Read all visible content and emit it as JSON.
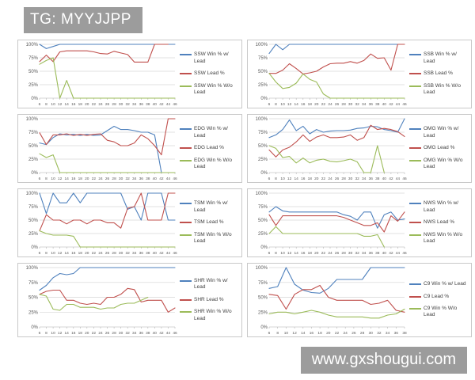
{
  "watermarks": {
    "top_left": "TG: MYYJJPP",
    "bottom_right": "www.gxshougui.com",
    "bg_color": "#9c9c9c",
    "text_color": "#ffffff"
  },
  "palette": {
    "blue": "#4F81BD",
    "red": "#C0504D",
    "green": "#9BBB59",
    "grid": "#d6d6d6",
    "axis_text": "#595959",
    "panel_border": "#c9c9c9"
  },
  "chart_data": [
    {
      "id": "ssw",
      "type": "line",
      "title": "",
      "xlabel": "",
      "ylabel": "",
      "grid": true,
      "legend_position": "right",
      "ylim": [
        0,
        100
      ],
      "yticks": [
        "0%",
        "25%",
        "50%",
        "75%",
        "100%"
      ],
      "x": [
        6,
        8,
        10,
        12,
        14,
        16,
        18,
        20,
        22,
        24,
        26,
        28,
        30,
        32,
        34,
        36,
        38,
        40,
        42,
        44,
        46
      ],
      "series": [
        {
          "name": "SSW Win % w/ Lead",
          "color": "#4F81BD",
          "values": [
            100,
            92,
            96,
            100,
            100,
            100,
            100,
            100,
            100,
            100,
            100,
            100,
            100,
            100,
            100,
            100,
            100,
            100,
            100,
            100,
            100
          ]
        },
        {
          "name": "SSW Lead %",
          "color": "#C0504D",
          "values": [
            68,
            80,
            68,
            86,
            88,
            88,
            88,
            88,
            86,
            83,
            82,
            87,
            84,
            81,
            67,
            67,
            67,
            100,
            100,
            100,
            null
          ]
        },
        {
          "name": "SSW Win % W/o Lead",
          "color": "#9BBB59",
          "values": [
            63,
            70,
            75,
            0,
            33,
            0,
            0,
            0,
            0,
            0,
            0,
            0,
            0,
            0,
            0,
            0,
            0,
            0,
            0,
            0,
            0
          ]
        }
      ]
    },
    {
      "id": "ssb",
      "type": "line",
      "title": "",
      "xlabel": "",
      "ylabel": "",
      "grid": true,
      "legend_position": "right",
      "ylim": [
        0,
        100
      ],
      "yticks": [
        "0%",
        "25%",
        "50%",
        "75%",
        "100%"
      ],
      "x": [
        6,
        8,
        10,
        12,
        14,
        16,
        18,
        20,
        22,
        24,
        26,
        28,
        30,
        32,
        34,
        36,
        38,
        40,
        42,
        44,
        46
      ],
      "series": [
        {
          "name": "SSB Win % w/ Lead",
          "color": "#4F81BD",
          "values": [
            83,
            100,
            90,
            100,
            100,
            100,
            100,
            100,
            100,
            100,
            100,
            100,
            100,
            100,
            100,
            100,
            100,
            100,
            100,
            100,
            100
          ]
        },
        {
          "name": "SSB Lead %",
          "color": "#C0504D",
          "values": [
            46,
            46,
            52,
            64,
            55,
            45,
            47,
            50,
            58,
            64,
            65,
            65,
            68,
            65,
            70,
            82,
            74,
            75,
            52,
            100,
            100
          ]
        },
        {
          "name": "SSB Win % W/o Lead",
          "color": "#9BBB59",
          "values": [
            46,
            30,
            18,
            20,
            28,
            45,
            35,
            30,
            8,
            0,
            0,
            0,
            0,
            0,
            0,
            0,
            0,
            0,
            0,
            0,
            0
          ]
        }
      ]
    },
    {
      "id": "edg",
      "type": "line",
      "title": "",
      "xlabel": "",
      "ylabel": "",
      "grid": true,
      "legend_position": "right",
      "ylim": [
        0,
        100
      ],
      "yticks": [
        "0%",
        "25%",
        "50%",
        "75%",
        "100%"
      ],
      "x": [
        6,
        8,
        10,
        12,
        14,
        16,
        18,
        20,
        22,
        24,
        26,
        28,
        30,
        32,
        34,
        36,
        38,
        40,
        42,
        44,
        46
      ],
      "series": [
        {
          "name": "EDG Win % w/ Lead",
          "color": "#4F81BD",
          "values": [
            55,
            52,
            65,
            72,
            70,
            71,
            69,
            71,
            69,
            70,
            78,
            86,
            80,
            80,
            78,
            75,
            75,
            70,
            0,
            0,
            0
          ]
        },
        {
          "name": "EDG Lead %",
          "color": "#C0504D",
          "values": [
            74,
            52,
            70,
            70,
            72,
            69,
            71,
            69,
            71,
            72,
            60,
            57,
            50,
            50,
            55,
            70,
            63,
            50,
            33,
            100,
            100
          ]
        },
        {
          "name": "EDG Win % W/o Lead",
          "color": "#9BBB59",
          "values": [
            35,
            28,
            33,
            0,
            0,
            0,
            0,
            0,
            0,
            0,
            0,
            0,
            0,
            0,
            0,
            0,
            0,
            0,
            0,
            0,
            0
          ]
        }
      ]
    },
    {
      "id": "omg",
      "type": "line",
      "title": "",
      "xlabel": "",
      "ylabel": "",
      "grid": true,
      "legend_position": "right",
      "ylim": [
        0,
        100
      ],
      "yticks": [
        "0%",
        "25%",
        "50%",
        "75%",
        "100%"
      ],
      "x": [
        6,
        8,
        10,
        12,
        14,
        16,
        18,
        20,
        22,
        24,
        26,
        28,
        30,
        32,
        34,
        36,
        38,
        40,
        42,
        44,
        46
      ],
      "series": [
        {
          "name": "OMG Win % w/ Lead",
          "color": "#4F81BD",
          "values": [
            65,
            70,
            80,
            98,
            78,
            86,
            72,
            80,
            75,
            77,
            78,
            78,
            79,
            82,
            83,
            86,
            85,
            80,
            78,
            75,
            100
          ]
        },
        {
          "name": "OMG Lead %",
          "color": "#C0504D",
          "values": [
            42,
            29,
            42,
            47,
            57,
            70,
            58,
            66,
            70,
            65,
            65,
            66,
            70,
            60,
            65,
            88,
            80,
            82,
            80,
            76,
            67
          ]
        },
        {
          "name": "OMG Win % W/o Lead",
          "color": "#9BBB59",
          "values": [
            50,
            45,
            28,
            30,
            18,
            27,
            18,
            23,
            25,
            21,
            20,
            22,
            25,
            20,
            0,
            0,
            50,
            0,
            null,
            null,
            null
          ]
        }
      ]
    },
    {
      "id": "tsm",
      "type": "line",
      "title": "",
      "xlabel": "",
      "ylabel": "",
      "grid": true,
      "legend_position": "right",
      "ylim": [
        0,
        100
      ],
      "yticks": [
        "0%",
        "25%",
        "50%",
        "75%",
        "100%"
      ],
      "x": [
        6,
        8,
        10,
        12,
        14,
        16,
        18,
        20,
        22,
        24,
        26,
        28,
        30,
        32,
        34,
        36,
        38,
        40,
        42,
        44,
        46
      ],
      "series": [
        {
          "name": "TSM Win % w/ Lead",
          "color": "#4F81BD",
          "values": [
            100,
            62,
            100,
            82,
            82,
            100,
            82,
            100,
            100,
            100,
            100,
            100,
            100,
            70,
            75,
            50,
            100,
            100,
            100,
            50,
            50
          ]
        },
        {
          "name": "TSM Lead %",
          "color": "#C0504D",
          "values": [
            30,
            60,
            50,
            50,
            43,
            50,
            50,
            43,
            50,
            50,
            45,
            45,
            35,
            72,
            75,
            100,
            50,
            50,
            50,
            100,
            100
          ]
        },
        {
          "name": "TSM Win % W/o Lead",
          "color": "#9BBB59",
          "values": [
            30,
            25,
            22,
            22,
            22,
            20,
            0,
            0,
            0,
            0,
            0,
            0,
            0,
            0,
            0,
            0,
            0,
            0,
            0,
            0,
            0
          ]
        }
      ]
    },
    {
      "id": "nws",
      "type": "line",
      "title": "",
      "xlabel": "",
      "ylabel": "",
      "grid": true,
      "legend_position": "right",
      "ylim": [
        0,
        100
      ],
      "yticks": [
        "0%",
        "25%",
        "50%",
        "75%",
        "100%"
      ],
      "x": [
        6,
        8,
        10,
        12,
        14,
        16,
        18,
        20,
        22,
        24,
        26,
        28,
        30,
        32,
        34,
        36,
        38,
        40,
        42,
        44,
        46
      ],
      "series": [
        {
          "name": "NWS Win % w/ Lead",
          "color": "#4F81BD",
          "values": [
            65,
            75,
            67,
            65,
            65,
            65,
            65,
            65,
            65,
            65,
            65,
            60,
            57,
            50,
            65,
            65,
            35,
            60,
            65,
            50,
            52
          ]
        },
        {
          "name": "NWS Lead %",
          "color": "#C0504D",
          "values": [
            60,
            40,
            58,
            58,
            58,
            58,
            58,
            58,
            58,
            58,
            58,
            55,
            50,
            45,
            40,
            40,
            45,
            28,
            58,
            48,
            65
          ]
        },
        {
          "name": "NWS Win % W/o Lead",
          "color": "#9BBB59",
          "values": [
            25,
            38,
            25,
            25,
            25,
            25,
            25,
            25,
            25,
            25,
            25,
            25,
            25,
            25,
            20,
            20,
            23,
            0,
            null,
            null,
            null
          ]
        }
      ]
    },
    {
      "id": "shr",
      "type": "line",
      "title": "",
      "xlabel": "",
      "ylabel": "",
      "grid": true,
      "legend_position": "right",
      "ylim": [
        0,
        100
      ],
      "yticks": [
        "0%",
        "25%",
        "50%",
        "75%",
        "100%"
      ],
      "x": [
        6,
        8,
        10,
        12,
        14,
        16,
        18,
        20,
        22,
        24,
        26,
        28,
        30,
        32,
        34,
        36,
        38,
        40,
        42,
        44,
        46
      ],
      "series": [
        {
          "name": "SHR Win % w/ Lead",
          "color": "#4F81BD",
          "values": [
            62,
            70,
            83,
            90,
            88,
            90,
            100,
            100,
            100,
            100,
            100,
            100,
            100,
            100,
            100,
            100,
            100,
            100,
            100,
            100,
            100
          ]
        },
        {
          "name": "SHR Lead %",
          "color": "#C0504D",
          "values": [
            55,
            60,
            62,
            62,
            45,
            45,
            40,
            38,
            40,
            38,
            50,
            50,
            55,
            65,
            63,
            42,
            45,
            45,
            45,
            25,
            32
          ]
        },
        {
          "name": "SHR Win % W/o Lead",
          "color": "#9BBB59",
          "values": [
            55,
            52,
            30,
            28,
            38,
            38,
            33,
            33,
            33,
            30,
            32,
            32,
            38,
            40,
            40,
            45,
            50,
            null,
            null,
            null,
            null
          ]
        }
      ]
    },
    {
      "id": "c9",
      "type": "line",
      "title": "",
      "xlabel": "",
      "ylabel": "",
      "grid": true,
      "legend_position": "right",
      "ylim": [
        0,
        100
      ],
      "yticks": [
        "0%",
        "25%",
        "50%",
        "75%",
        "100%"
      ],
      "x": [
        6,
        8,
        10,
        12,
        14,
        16,
        18,
        20,
        22,
        24,
        26,
        28,
        30,
        32,
        34,
        36,
        38
      ],
      "series": [
        {
          "name": "C9 Win % w/ Lead",
          "color": "#4F81BD",
          "values": [
            65,
            68,
            100,
            72,
            62,
            58,
            57,
            65,
            80,
            80,
            80,
            80,
            100,
            100,
            100,
            100,
            100
          ]
        },
        {
          "name": "C9 Lead %",
          "color": "#C0504D",
          "values": [
            55,
            53,
            30,
            55,
            63,
            63,
            70,
            50,
            45,
            45,
            45,
            45,
            38,
            40,
            45,
            28,
            25
          ]
        },
        {
          "name": "C9 Win % W/o Lead",
          "color": "#9BBB59",
          "values": [
            22,
            25,
            25,
            22,
            25,
            28,
            25,
            20,
            17,
            17,
            17,
            17,
            15,
            15,
            20,
            22,
            30
          ]
        }
      ]
    }
  ]
}
